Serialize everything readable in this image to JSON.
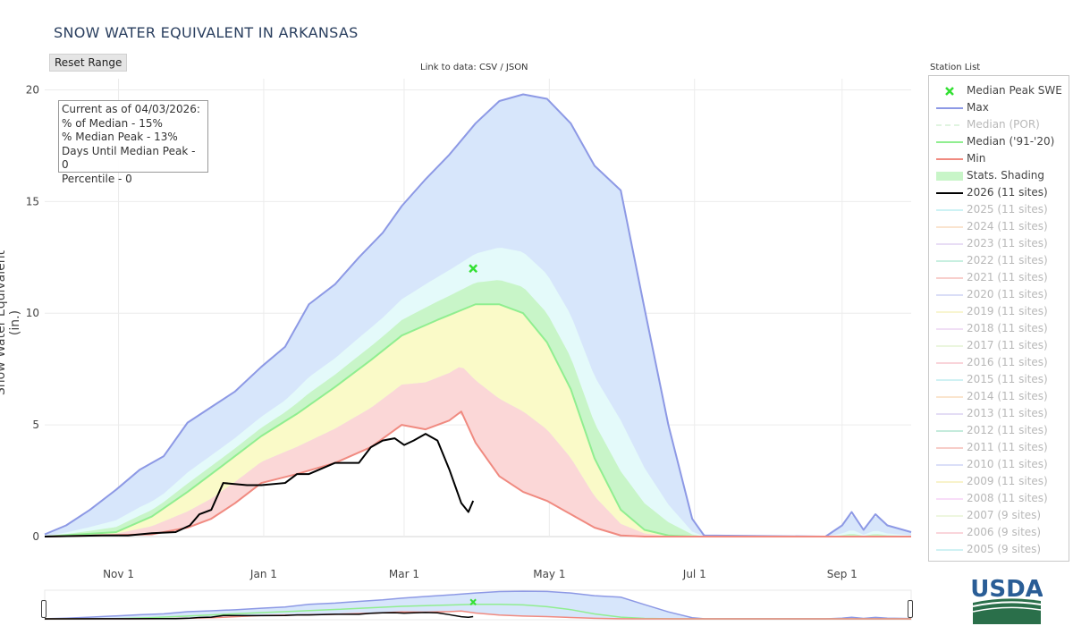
{
  "title": "SNOW WATER EQUIVALENT IN ARKANSAS",
  "reset_button": "Reset Range",
  "links": {
    "prefix": "Link to data:",
    "csv": "CSV",
    "sep": "/",
    "json": "JSON"
  },
  "station_list_label": "Station List",
  "info": {
    "current": "Current as of 04/03/2026:",
    "pct_median": "% of Median - 15%",
    "pct_median_peak": "% Median Peak - 13%",
    "days_until_peak": "Days Until Median Peak - 0",
    "percentile": "Percentile - 0"
  },
  "colors": {
    "max": "#8d99e5",
    "median": "#90ee90",
    "min": "#f08a80",
    "current": "#000000",
    "median_peak": "#33e033",
    "band_max": "#d7e6fb",
    "band_upper": "#e4fafa",
    "band_upmid": "#c8f5c8",
    "band_lowmid": "#fafac8",
    "band_low": "#fbd7d7"
  },
  "legend": [
    {
      "label": "Median Peak SWE",
      "symbol": "x",
      "color": "#33e033",
      "active": true
    },
    {
      "label": "Max",
      "symbol": "line",
      "color": "#8d99e5",
      "active": true
    },
    {
      "label": "Median (POR)",
      "symbol": "dash",
      "color": "#c8ecc8",
      "active": false
    },
    {
      "label": "Median ('91-'20)",
      "symbol": "line",
      "color": "#90ee90",
      "active": true
    },
    {
      "label": "Min",
      "symbol": "line",
      "color": "#f08a80",
      "active": true
    },
    {
      "label": "Stats. Shading",
      "symbol": "fill",
      "color": "#c8f5c8",
      "active": true
    },
    {
      "label": "2026 (11 sites)",
      "symbol": "line",
      "color": "#000000",
      "active": true
    },
    {
      "label": "2025 (11 sites)",
      "symbol": "line",
      "color": "#a6e8ec",
      "active": false
    },
    {
      "label": "2024 (11 sites)",
      "symbol": "line",
      "color": "#f7cfa8",
      "active": false
    },
    {
      "label": "2023 (11 sites)",
      "symbol": "line",
      "color": "#d6c2ee",
      "active": false
    },
    {
      "label": "2022 (11 sites)",
      "symbol": "line",
      "color": "#9be2c7",
      "active": false
    },
    {
      "label": "2021 (11 sites)",
      "symbol": "line",
      "color": "#f3a9a3",
      "active": false
    },
    {
      "label": "2020 (11 sites)",
      "symbol": "line",
      "color": "#bcc4f2",
      "active": false
    },
    {
      "label": "2019 (11 sites)",
      "symbol": "line",
      "color": "#f4eeaa",
      "active": false
    },
    {
      "label": "2018 (11 sites)",
      "symbol": "line",
      "color": "#e4c6ee",
      "active": false
    },
    {
      "label": "2017 (11 sites)",
      "symbol": "line",
      "color": "#dcefc4",
      "active": false
    },
    {
      "label": "2016 (11 sites)",
      "symbol": "line",
      "color": "#f5b2bc",
      "active": false
    },
    {
      "label": "2015 (11 sites)",
      "symbol": "line",
      "color": "#a9e6ea",
      "active": false
    },
    {
      "label": "2014 (11 sites)",
      "symbol": "line",
      "color": "#f6d0a7",
      "active": false
    },
    {
      "label": "2013 (11 sites)",
      "symbol": "line",
      "color": "#cfc2ee",
      "active": false
    },
    {
      "label": "2012 (11 sites)",
      "symbol": "line",
      "color": "#96dcc0",
      "active": false
    },
    {
      "label": "2011 (11 sites)",
      "symbol": "line",
      "color": "#f1a59c",
      "active": false
    },
    {
      "label": "2010 (11 sites)",
      "symbol": "line",
      "color": "#bfc6f3",
      "active": false
    },
    {
      "label": "2009 (11 sites)",
      "symbol": "line",
      "color": "#f3eaa2",
      "active": false
    },
    {
      "label": "2008 (11 sites)",
      "symbol": "line",
      "color": "#f3c2f3",
      "active": false
    },
    {
      "label": "2007 (9 sites)",
      "symbol": "line",
      "color": "#e1efc6",
      "active": false
    },
    {
      "label": "2006 (9 sites)",
      "symbol": "line",
      "color": "#f6b3bf",
      "active": false
    },
    {
      "label": "2005 (9 sites)",
      "symbol": "line",
      "color": "#a9e7eb",
      "active": false
    }
  ],
  "usda_logo_text": "USDA",
  "chart_data": {
    "type": "line",
    "ylabel": "Snow Water Equivalent (in.)",
    "xlabel": "",
    "ylim": [
      0,
      20.5
    ],
    "yticks": [
      0,
      5,
      10,
      15,
      20
    ],
    "xticks": [
      "Nov 1",
      "Jan 1",
      "Mar 1",
      "May 1",
      "Jul 1",
      "Sep 1"
    ],
    "xrange": [
      "Oct 1",
      "Sep 30"
    ],
    "grid": true,
    "legend_position": "right",
    "median_peak": {
      "date": "Mar 30",
      "value": 12.0
    },
    "series": [
      {
        "name": "Max",
        "points": [
          [
            "Oct 1",
            0.1
          ],
          [
            "Oct 10",
            0.5
          ],
          [
            "Oct 20",
            1.2
          ],
          [
            "Oct 31",
            2.1
          ],
          [
            "Nov 10",
            3.0
          ],
          [
            "Nov 20",
            3.6
          ],
          [
            "Nov 30",
            5.1
          ],
          [
            "Dec 10",
            5.8
          ],
          [
            "Dec 20",
            6.5
          ],
          [
            "Dec 31",
            7.6
          ],
          [
            "Jan 10",
            8.5
          ],
          [
            "Jan 20",
            10.4
          ],
          [
            "Jan 31",
            11.3
          ],
          [
            "Feb 10",
            12.5
          ],
          [
            "Feb 20",
            13.6
          ],
          [
            "Feb 28",
            14.8
          ],
          [
            "Mar 10",
            16.0
          ],
          [
            "Mar 20",
            17.1
          ],
          [
            "Mar 31",
            18.5
          ],
          [
            "Apr 10",
            19.5
          ],
          [
            "Apr 20",
            19.8
          ],
          [
            "Apr 30",
            19.6
          ],
          [
            "May 10",
            18.5
          ],
          [
            "May 20",
            16.6
          ],
          [
            "May 31",
            15.5
          ],
          [
            "Jun 10",
            10.2
          ],
          [
            "Jun 20",
            5.0
          ],
          [
            "Jun 30",
            0.8
          ],
          [
            "Jul 5",
            0.05
          ],
          [
            "Aug 25",
            0.0
          ],
          [
            "Sep 1",
            0.5
          ],
          [
            "Sep 5",
            1.1
          ],
          [
            "Sep 10",
            0.3
          ],
          [
            "Sep 15",
            1.0
          ],
          [
            "Sep 20",
            0.5
          ],
          [
            "Sep 30",
            0.2
          ]
        ]
      },
      {
        "name": "Median ('91-'20)",
        "points": [
          [
            "Oct 1",
            0.0
          ],
          [
            "Oct 31",
            0.2
          ],
          [
            "Nov 15",
            0.9
          ],
          [
            "Nov 30",
            2.0
          ],
          [
            "Dec 15",
            3.2
          ],
          [
            "Dec 31",
            4.5
          ],
          [
            "Jan 15",
            5.5
          ],
          [
            "Jan 31",
            6.7
          ],
          [
            "Feb 15",
            7.9
          ],
          [
            "Feb 28",
            9.0
          ],
          [
            "Mar 15",
            9.7
          ],
          [
            "Mar 31",
            10.4
          ],
          [
            "Apr 10",
            10.4
          ],
          [
            "Apr 20",
            10.0
          ],
          [
            "Apr 30",
            8.7
          ],
          [
            "May 10",
            6.6
          ],
          [
            "May 20",
            3.5
          ],
          [
            "May 31",
            1.2
          ],
          [
            "Jun 10",
            0.3
          ],
          [
            "Jun 20",
            0.05
          ],
          [
            "Jun 30",
            0.0
          ],
          [
            "Sep 30",
            0.0
          ]
        ]
      },
      {
        "name": "Min",
        "points": [
          [
            "Oct 1",
            0.0
          ],
          [
            "Nov 15",
            0.1
          ],
          [
            "Nov 30",
            0.4
          ],
          [
            "Dec 10",
            0.8
          ],
          [
            "Dec 20",
            1.5
          ],
          [
            "Dec 31",
            2.4
          ],
          [
            "Jan 15",
            2.8
          ],
          [
            "Jan 31",
            3.3
          ],
          [
            "Feb 15",
            4.0
          ],
          [
            "Feb 28",
            5.0
          ],
          [
            "Mar 10",
            4.8
          ],
          [
            "Mar 20",
            5.2
          ],
          [
            "Mar 25",
            5.6
          ],
          [
            "Mar 31",
            4.2
          ],
          [
            "Apr 10",
            2.7
          ],
          [
            "Apr 20",
            2.0
          ],
          [
            "Apr 30",
            1.6
          ],
          [
            "May 10",
            1.0
          ],
          [
            "May 20",
            0.4
          ],
          [
            "May 31",
            0.05
          ],
          [
            "Jun 10",
            0.0
          ],
          [
            "Sep 30",
            0.0
          ]
        ]
      },
      {
        "name": "2026 (11 sites)",
        "points": [
          [
            "Oct 1",
            0.0
          ],
          [
            "Oct 25",
            0.05
          ],
          [
            "Nov 5",
            0.05
          ],
          [
            "Nov 15",
            0.15
          ],
          [
            "Nov 25",
            0.2
          ],
          [
            "Dec 1",
            0.5
          ],
          [
            "Dec 5",
            1.0
          ],
          [
            "Dec 10",
            1.2
          ],
          [
            "Dec 15",
            2.4
          ],
          [
            "Dec 25",
            2.3
          ],
          [
            "Dec 31",
            2.3
          ],
          [
            "Jan 10",
            2.4
          ],
          [
            "Jan 15",
            2.8
          ],
          [
            "Jan 20",
            2.8
          ],
          [
            "Jan 31",
            3.3
          ],
          [
            "Feb 10",
            3.3
          ],
          [
            "Feb 15",
            4.0
          ],
          [
            "Feb 20",
            4.3
          ],
          [
            "Feb 25",
            4.4
          ],
          [
            "Mar 1",
            4.1
          ],
          [
            "Mar 5",
            4.3
          ],
          [
            "Mar 10",
            4.6
          ],
          [
            "Mar 15",
            4.3
          ],
          [
            "Mar 20",
            3.0
          ],
          [
            "Mar 25",
            1.5
          ],
          [
            "Mar 28",
            1.1
          ],
          [
            "Mar 30",
            1.6
          ]
        ]
      }
    ],
    "stat_bands": [
      {
        "name": "max-shading",
        "lower": "Min",
        "upper": "Max",
        "color": "#d7e6fb"
      },
      {
        "name": "upper-shading",
        "color": "#e4fafa"
      },
      {
        "name": "upper-mid-shading",
        "color": "#c8f5c8"
      },
      {
        "name": "lower-mid-shading",
        "color": "#fafac8"
      },
      {
        "name": "low-shading",
        "color": "#fbd7d7"
      }
    ]
  }
}
